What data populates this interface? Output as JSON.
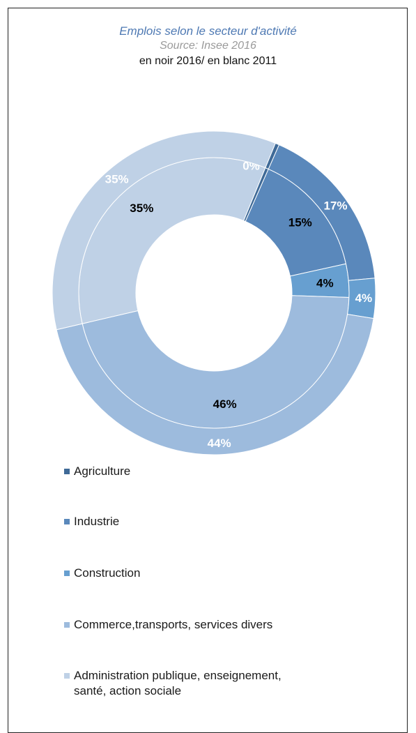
{
  "chart_data": {
    "type": "donut",
    "title": "Emplois selon le secteur d'activité",
    "subtitle": "Source: Insee 2016",
    "note": "en noir 2016/  en blanc 2011",
    "categories": [
      "Agriculture",
      "Industrie",
      "Construction",
      "Commerce,transports, services divers",
      "Administration publique, enseignement, santé, action sociale"
    ],
    "colors": [
      "#3f6a97",
      "#5a88bb",
      "#679fd0",
      "#9dbbdd",
      "#bfd1e6"
    ],
    "series": [
      {
        "ring": "inner",
        "label_color": "#000000",
        "values": [
          0.4,
          15,
          4,
          46,
          35
        ],
        "labels": [
          "0%",
          "15%",
          "4%",
          "46%",
          "35%"
        ]
      },
      {
        "ring": "outer",
        "label_color": "#ffffff",
        "values": [
          0.4,
          17,
          4,
          44,
          35
        ],
        "labels": [
          "0%",
          "17%",
          "4%",
          "44%",
          "35%"
        ]
      }
    ],
    "legend_position": "bottom-left"
  }
}
